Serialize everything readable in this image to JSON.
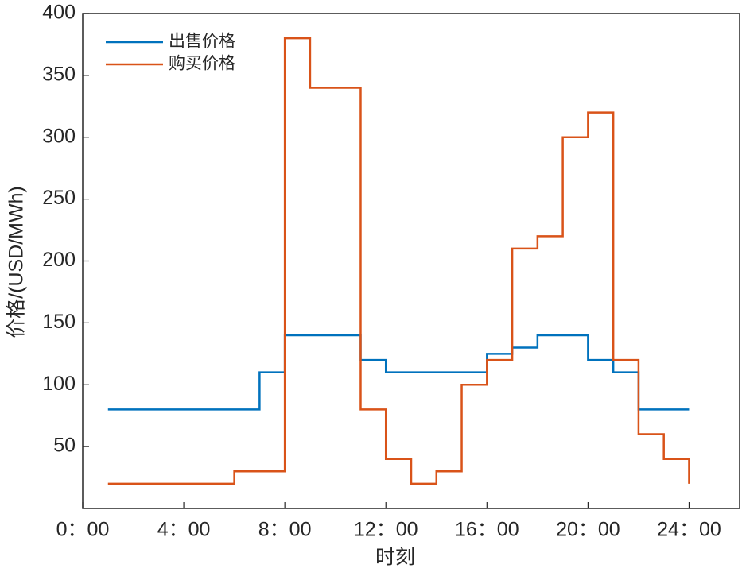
{
  "chart_data": {
    "type": "line",
    "step": "post",
    "xlabel": "时刻",
    "ylabel": "价格/(USD/MWh)",
    "x": [
      1,
      2,
      3,
      4,
      5,
      6,
      7,
      8,
      9,
      10,
      11,
      12,
      13,
      14,
      15,
      16,
      17,
      18,
      19,
      20,
      21,
      22,
      23,
      24
    ],
    "series": [
      {
        "name": "出售价格",
        "color": "#0072bd",
        "values": [
          80,
          80,
          80,
          80,
          80,
          80,
          110,
          140,
          140,
          140,
          120,
          110,
          110,
          110,
          110,
          125,
          130,
          140,
          140,
          120,
          110,
          80,
          80,
          80
        ]
      },
      {
        "name": "购买价格",
        "color": "#d95319",
        "values": [
          20,
          20,
          20,
          20,
          20,
          30,
          30,
          380,
          340,
          340,
          80,
          40,
          20,
          30,
          100,
          120,
          210,
          220,
          300,
          320,
          120,
          60,
          40,
          20
        ]
      }
    ],
    "xlim": [
      0,
      26
    ],
    "ylim": [
      0,
      400
    ],
    "xticks": [
      {
        "value": 0,
        "label": "0：00"
      },
      {
        "value": 4,
        "label": "4：00"
      },
      {
        "value": 8,
        "label": "8：00"
      },
      {
        "value": 12,
        "label": "12：00"
      },
      {
        "value": 16,
        "label": "16：00"
      },
      {
        "value": 20,
        "label": "20：00"
      },
      {
        "value": 24,
        "label": "24：00"
      }
    ],
    "yticks": [
      50,
      100,
      150,
      200,
      250,
      300,
      350,
      400
    ],
    "grid": false,
    "legend": "upper left"
  }
}
